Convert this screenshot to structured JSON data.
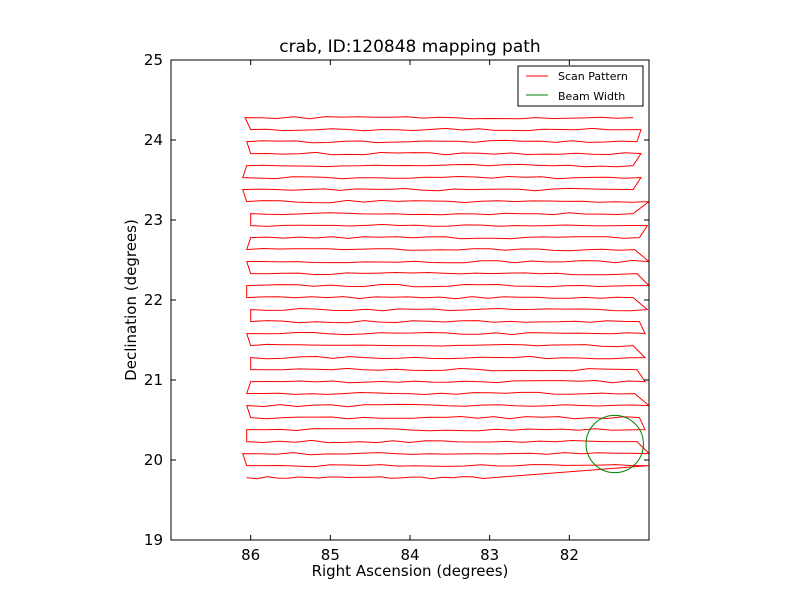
{
  "chart_data": {
    "type": "line",
    "title": "crab, ID:120848 mapping path",
    "xlabel": "Right Ascension (degrees)",
    "ylabel": "Declination (degrees)",
    "xlim": [
      87.0,
      81.0
    ],
    "ylim": [
      19.0,
      25.0
    ],
    "x_inverted": true,
    "xticks": [
      86,
      85,
      84,
      83,
      82
    ],
    "yticks": [
      19,
      20,
      21,
      22,
      23,
      24,
      25
    ],
    "grid": false,
    "legend": {
      "placement": "top-right",
      "entries": [
        {
          "label": "Scan Pattern",
          "color": "#ff0000"
        },
        {
          "label": "Beam Width",
          "color": "#008000"
        }
      ]
    },
    "series": [
      {
        "name": "Scan Pattern",
        "color": "#ff0000",
        "rows": [
          {
            "dec": 19.78,
            "ra_east": 86.05,
            "ra_west": 82.95
          },
          {
            "dec": 19.93,
            "ra_east": 86.05,
            "ra_west": 81.0
          },
          {
            "dec": 20.08,
            "ra_east": 86.1,
            "ra_west": 81.0
          },
          {
            "dec": 20.23,
            "ra_east": 86.05,
            "ra_west": 81.15
          },
          {
            "dec": 20.38,
            "ra_east": 86.05,
            "ra_west": 81.05
          },
          {
            "dec": 20.53,
            "ra_east": 86.0,
            "ra_west": 81.12
          },
          {
            "dec": 20.68,
            "ra_east": 86.05,
            "ra_west": 81.0
          },
          {
            "dec": 20.83,
            "ra_east": 86.05,
            "ra_west": 81.18
          },
          {
            "dec": 20.98,
            "ra_east": 86.0,
            "ra_west": 81.05
          },
          {
            "dec": 21.13,
            "ra_east": 86.0,
            "ra_west": 81.15
          },
          {
            "dec": 21.28,
            "ra_east": 86.0,
            "ra_west": 81.05
          },
          {
            "dec": 21.43,
            "ra_east": 86.0,
            "ra_west": 81.2
          },
          {
            "dec": 21.58,
            "ra_east": 86.05,
            "ra_west": 81.05
          },
          {
            "dec": 21.73,
            "ra_east": 86.0,
            "ra_west": 81.12
          },
          {
            "dec": 21.88,
            "ra_east": 86.0,
            "ra_west": 81.02
          },
          {
            "dec": 22.03,
            "ra_east": 86.05,
            "ra_west": 81.2
          },
          {
            "dec": 22.18,
            "ra_east": 86.05,
            "ra_west": 81.0
          },
          {
            "dec": 22.33,
            "ra_east": 86.0,
            "ra_west": 81.15
          },
          {
            "dec": 22.48,
            "ra_east": 86.05,
            "ra_west": 81.0
          },
          {
            "dec": 22.63,
            "ra_east": 86.05,
            "ra_west": 81.18
          },
          {
            "dec": 22.78,
            "ra_east": 86.0,
            "ra_west": 81.12
          },
          {
            "dec": 22.93,
            "ra_east": 86.0,
            "ra_west": 81.02
          },
          {
            "dec": 23.08,
            "ra_east": 86.0,
            "ra_west": 81.2
          },
          {
            "dec": 23.23,
            "ra_east": 86.05,
            "ra_west": 81.0
          },
          {
            "dec": 23.38,
            "ra_east": 86.1,
            "ra_west": 81.2
          },
          {
            "dec": 23.53,
            "ra_east": 86.1,
            "ra_west": 81.1
          },
          {
            "dec": 23.68,
            "ra_east": 86.05,
            "ra_west": 81.2
          },
          {
            "dec": 23.83,
            "ra_east": 86.0,
            "ra_west": 81.1
          },
          {
            "dec": 23.98,
            "ra_east": 86.05,
            "ra_west": 81.15
          },
          {
            "dec": 24.13,
            "ra_east": 86.0,
            "ra_west": 81.1
          },
          {
            "dec": 24.28,
            "ra_east": 86.07,
            "ra_west": 81.2
          }
        ]
      },
      {
        "name": "Beam Width",
        "color": "#008000",
        "circle": {
          "ra": 81.43,
          "dec": 20.2,
          "radius_deg": 0.36
        }
      }
    ]
  }
}
